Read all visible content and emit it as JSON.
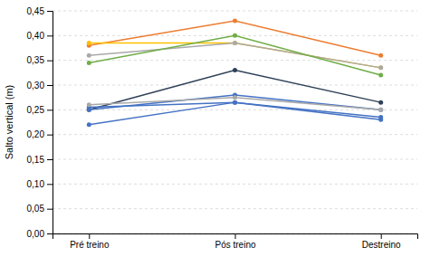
{
  "chart_data": {
    "type": "line",
    "categories": [
      "Pré treino",
      "Pós treino",
      "Destreino"
    ],
    "series": [
      {
        "color": "#ED7D31",
        "marker": "circle",
        "values": [
          0.38,
          0.43,
          0.36
        ]
      },
      {
        "color": "#FFC000",
        "marker": "circle",
        "values": [
          0.385,
          0.385,
          0.335
        ]
      },
      {
        "color": "#A9A9A9",
        "marker": "circle",
        "values": [
          0.36,
          0.385,
          0.335
        ]
      },
      {
        "color": "#70AD47",
        "marker": "circle",
        "values": [
          0.345,
          0.4,
          0.32
        ]
      },
      {
        "color": "#2E4057",
        "marker": "circle",
        "values": [
          0.25,
          0.33,
          0.265
        ]
      },
      {
        "color": "#4472C4",
        "marker": "circle",
        "values": [
          0.25,
          0.28,
          0.25
        ]
      },
      {
        "color": "#4472C4",
        "marker": "circle",
        "values": [
          0.255,
          0.265,
          0.235
        ]
      },
      {
        "color": "#A9A9A9",
        "marker": "circle",
        "values": [
          0.26,
          0.275,
          0.25
        ]
      },
      {
        "color": "#4472C4",
        "marker": "circle",
        "values": [
          0.22,
          0.265,
          0.23
        ]
      }
    ],
    "y_label": "Salto vertical (m)",
    "ylim": [
      0.0,
      0.45
    ],
    "yticks": [
      {
        "value": 0.0,
        "label": "0,00"
      },
      {
        "value": 0.05,
        "label": "0,05"
      },
      {
        "value": 0.1,
        "label": "0,10"
      },
      {
        "value": 0.15,
        "label": "0,15"
      },
      {
        "value": 0.2,
        "label": "0,20"
      },
      {
        "value": 0.25,
        "label": "0,25"
      },
      {
        "value": 0.3,
        "label": "0,30"
      },
      {
        "value": 0.35,
        "label": "0,35"
      },
      {
        "value": 0.4,
        "label": "0,40"
      },
      {
        "value": 0.45,
        "label": "0,45"
      }
    ],
    "grid": true
  }
}
